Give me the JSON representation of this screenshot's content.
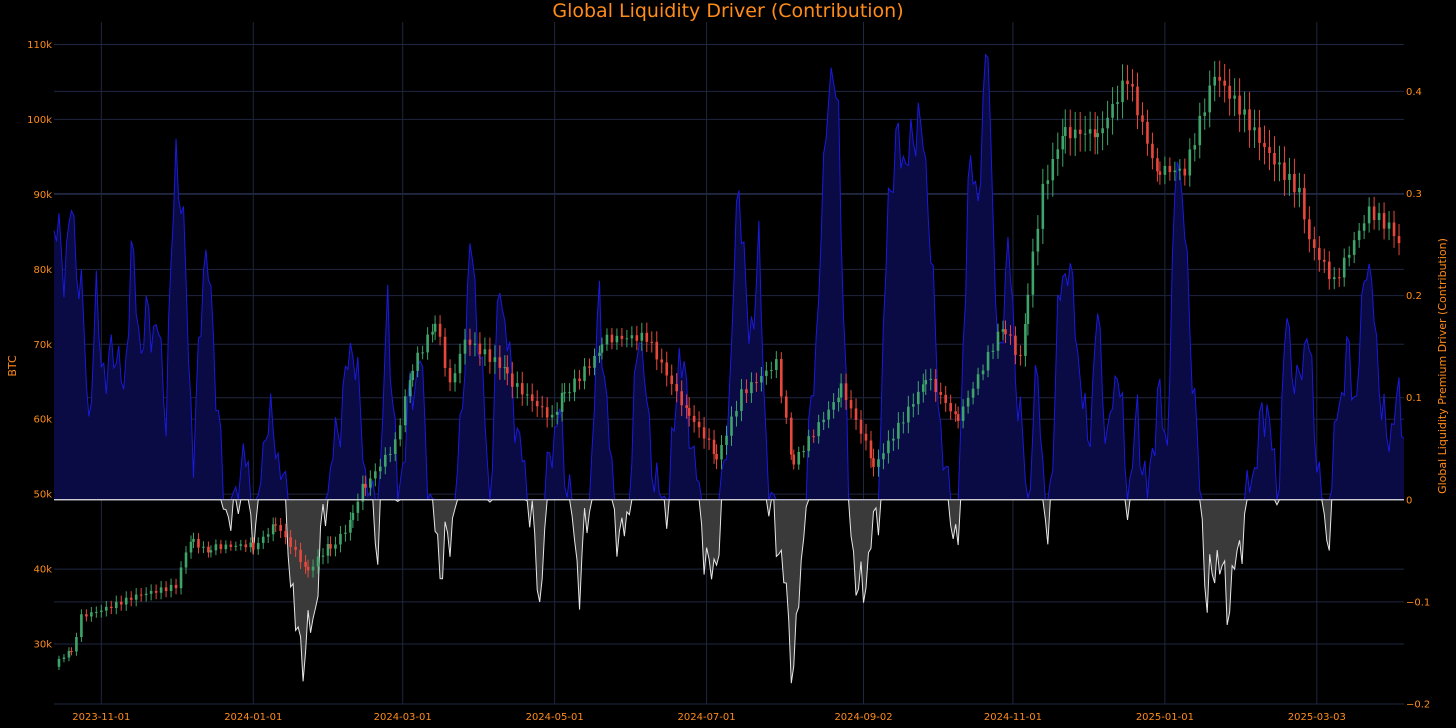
{
  "chart_data": {
    "type": "line",
    "title": "Global Liquidity Driver (Contribution)",
    "ylabel_left": "BTC",
    "ylabel_right": "Global Liquidity Premium Driver (Contribution)",
    "xlim": [
      "2023-10-13",
      "2025-04-07"
    ],
    "ylim_left": [
      22000,
      113000
    ],
    "ylim_right": [
      -0.2,
      0.468
    ],
    "x_ticks": [
      "2023-11-01",
      "2024-01-01",
      "2024-03-01",
      "2024-05-01",
      "2024-07-01",
      "2024-09-02",
      "2024-11-01",
      "2025-01-01",
      "2025-03-03"
    ],
    "y_ticks_left": [
      {
        "value": 30000,
        "label": "30k"
      },
      {
        "value": 40000,
        "label": "40k"
      },
      {
        "value": 50000,
        "label": "50k"
      },
      {
        "value": 60000,
        "label": "60k"
      },
      {
        "value": 70000,
        "label": "70k"
      },
      {
        "value": 80000,
        "label": "80k"
      },
      {
        "value": 90000,
        "label": "90k"
      },
      {
        "value": 100000,
        "label": "100k"
      },
      {
        "value": 110000,
        "label": "110k"
      }
    ],
    "y_ticks_right": [
      {
        "value": -0.2,
        "label": "−0.2"
      },
      {
        "value": -0.1,
        "label": "−0.1"
      },
      {
        "value": 0,
        "label": "0"
      },
      {
        "value": 0.1,
        "label": "0.1"
      },
      {
        "value": 0.2,
        "label": "0.2"
      },
      {
        "value": 0.3,
        "label": "0.3"
      },
      {
        "value": 0.4,
        "label": "0.4"
      }
    ],
    "btc_close_series": {
      "name": "BTC",
      "style": "candlestick",
      "points": [
        [
          "2023-10-13",
          27000
        ],
        [
          "2023-10-20",
          29000
        ],
        [
          "2023-10-24",
          34000
        ],
        [
          "2023-11-01",
          34800
        ],
        [
          "2023-11-15",
          36500
        ],
        [
          "2023-12-01",
          37500
        ],
        [
          "2023-12-05",
          42000
        ],
        [
          "2023-12-08",
          44000
        ],
        [
          "2023-12-15",
          42500
        ],
        [
          "2024-01-01",
          43000
        ],
        [
          "2024-01-10",
          46000
        ],
        [
          "2024-01-20",
          41500
        ],
        [
          "2024-01-23",
          39500
        ],
        [
          "2024-02-01",
          43000
        ],
        [
          "2024-02-10",
          47000
        ],
        [
          "2024-02-15",
          51500
        ],
        [
          "2024-02-27",
          57000
        ],
        [
          "2024-03-05",
          67000
        ],
        [
          "2024-03-14",
          73000
        ],
        [
          "2024-03-20",
          64000
        ],
        [
          "2024-03-26",
          70000
        ],
        [
          "2024-04-12",
          66000
        ],
        [
          "2024-04-30",
          60000
        ],
        [
          "2024-05-05",
          63500
        ],
        [
          "2024-05-20",
          70000
        ],
        [
          "2024-06-07",
          70500
        ],
        [
          "2024-06-24",
          60500
        ],
        [
          "2024-07-05",
          55000
        ],
        [
          "2024-07-15",
          64000
        ],
        [
          "2024-07-29",
          68000
        ],
        [
          "2024-08-05",
          54000
        ],
        [
          "2024-08-24",
          64000
        ],
        [
          "2024-09-06",
          54000
        ],
        [
          "2024-09-27",
          65500
        ],
        [
          "2024-10-10",
          60000
        ],
        [
          "2024-10-29",
          72500
        ],
        [
          "2024-11-04",
          68500
        ],
        [
          "2024-11-07",
          76500
        ],
        [
          "2024-11-13",
          90000
        ],
        [
          "2024-11-22",
          98500
        ],
        [
          "2024-12-05",
          98000
        ],
        [
          "2024-12-17",
          106500
        ],
        [
          "2024-12-30",
          92500
        ],
        [
          "2025-01-09",
          92500
        ],
        [
          "2025-01-21",
          106000
        ],
        [
          "2025-01-31",
          102000
        ],
        [
          "2025-02-10",
          97000
        ],
        [
          "2025-02-24",
          91000
        ],
        [
          "2025-02-28",
          84500
        ],
        [
          "2025-03-10",
          78500
        ],
        [
          "2025-03-24",
          87500
        ],
        [
          "2025-04-01",
          85000
        ],
        [
          "2025-04-05",
          83500
        ]
      ]
    },
    "liquidity_series": {
      "name": "Global Liquidity Premium Driver (Contribution)",
      "points": [
        [
          "2023-10-13",
          0.27
        ],
        [
          "2023-10-17",
          0.23
        ],
        [
          "2023-10-20",
          0.28
        ],
        [
          "2023-10-24",
          0.2
        ],
        [
          "2023-10-27",
          0.08
        ],
        [
          "2023-10-30",
          0.19
        ],
        [
          "2023-11-03",
          0.11
        ],
        [
          "2023-11-06",
          0.16
        ],
        [
          "2023-11-10",
          0.1
        ],
        [
          "2023-11-13",
          0.24
        ],
        [
          "2023-11-17",
          0.15
        ],
        [
          "2023-11-20",
          0.18
        ],
        [
          "2023-11-24",
          0.16
        ],
        [
          "2023-11-27",
          0.09
        ],
        [
          "2023-12-01",
          0.35
        ],
        [
          "2023-12-05",
          0.22
        ],
        [
          "2023-12-08",
          0.03
        ],
        [
          "2023-12-12",
          0.24
        ],
        [
          "2023-12-15",
          0.2
        ],
        [
          "2023-12-20",
          0.0
        ],
        [
          "2023-12-24",
          -0.02
        ],
        [
          "2023-12-28",
          0.05
        ],
        [
          "2024-01-02",
          -0.04
        ],
        [
          "2024-01-06",
          0.08
        ],
        [
          "2024-01-10",
          0.06
        ],
        [
          "2024-01-14",
          0.0
        ],
        [
          "2024-01-18",
          -0.13
        ],
        [
          "2024-01-22",
          -0.15
        ],
        [
          "2024-01-26",
          -0.1
        ],
        [
          "2024-01-30",
          0.0
        ],
        [
          "2024-02-04",
          0.07
        ],
        [
          "2024-02-10",
          0.16
        ],
        [
          "2024-02-15",
          0.03
        ],
        [
          "2024-02-20",
          -0.04
        ],
        [
          "2024-02-24",
          0.2
        ],
        [
          "2024-02-28",
          0.0
        ],
        [
          "2024-03-04",
          0.1
        ],
        [
          "2024-03-08",
          0.14
        ],
        [
          "2024-03-12",
          0.0
        ],
        [
          "2024-03-16",
          -0.06
        ],
        [
          "2024-03-20",
          -0.04
        ],
        [
          "2024-03-24",
          0.05
        ],
        [
          "2024-03-28",
          0.25
        ],
        [
          "2024-04-01",
          0.15
        ],
        [
          "2024-04-05",
          0.0
        ],
        [
          "2024-04-09",
          0.22
        ],
        [
          "2024-04-13",
          0.13
        ],
        [
          "2024-04-17",
          0.05
        ],
        [
          "2024-04-21",
          0.0
        ],
        [
          "2024-04-25",
          -0.1
        ],
        [
          "2024-04-29",
          0.05
        ],
        [
          "2024-05-03",
          0.08
        ],
        [
          "2024-05-07",
          0.0
        ],
        [
          "2024-05-11",
          -0.08
        ],
        [
          "2024-05-15",
          0.0
        ],
        [
          "2024-05-19",
          0.2
        ],
        [
          "2024-05-23",
          0.05
        ],
        [
          "2024-05-27",
          -0.05
        ],
        [
          "2024-05-31",
          0.0
        ],
        [
          "2024-06-04",
          0.18
        ],
        [
          "2024-06-08",
          0.06
        ],
        [
          "2024-06-12",
          0.0
        ],
        [
          "2024-06-16",
          0.0
        ],
        [
          "2024-06-20",
          0.15
        ],
        [
          "2024-06-24",
          0.08
        ],
        [
          "2024-06-28",
          0.0
        ],
        [
          "2024-07-02",
          -0.08
        ],
        [
          "2024-07-06",
          -0.04
        ],
        [
          "2024-07-10",
          0.1
        ],
        [
          "2024-07-14",
          0.32
        ],
        [
          "2024-07-18",
          0.15
        ],
        [
          "2024-07-22",
          0.24
        ],
        [
          "2024-07-26",
          0.0
        ],
        [
          "2024-07-30",
          -0.04
        ],
        [
          "2024-08-03",
          -0.12
        ],
        [
          "2024-08-05",
          -0.17
        ],
        [
          "2024-08-07",
          -0.1
        ],
        [
          "2024-08-11",
          0.05
        ],
        [
          "2024-08-15",
          0.2
        ],
        [
          "2024-08-19",
          0.42
        ],
        [
          "2024-08-23",
          0.38
        ],
        [
          "2024-08-27",
          0.0
        ],
        [
          "2024-08-31",
          -0.1
        ],
        [
          "2024-09-04",
          -0.06
        ],
        [
          "2024-09-08",
          0.0
        ],
        [
          "2024-09-12",
          0.3
        ],
        [
          "2024-09-16",
          0.35
        ],
        [
          "2024-09-20",
          0.33
        ],
        [
          "2024-09-24",
          0.38
        ],
        [
          "2024-09-28",
          0.3
        ],
        [
          "2024-10-02",
          0.1
        ],
        [
          "2024-10-06",
          0.0
        ],
        [
          "2024-10-10",
          -0.04
        ],
        [
          "2024-10-14",
          0.32
        ],
        [
          "2024-10-18",
          0.3
        ],
        [
          "2024-10-22",
          0.45
        ],
        [
          "2024-10-26",
          0.12
        ],
        [
          "2024-10-30",
          0.25
        ],
        [
          "2024-11-03",
          0.1
        ],
        [
          "2024-11-07",
          0.0
        ],
        [
          "2024-11-11",
          0.13
        ],
        [
          "2024-11-15",
          -0.06
        ],
        [
          "2024-11-19",
          0.18
        ],
        [
          "2024-11-23",
          0.24
        ],
        [
          "2024-11-27",
          0.15
        ],
        [
          "2024-12-01",
          0.05
        ],
        [
          "2024-12-05",
          0.18
        ],
        [
          "2024-12-09",
          0.05
        ],
        [
          "2024-12-13",
          0.14
        ],
        [
          "2024-12-17",
          0.0
        ],
        [
          "2024-12-21",
          0.08
        ],
        [
          "2024-12-25",
          0.0
        ],
        [
          "2024-12-29",
          0.1
        ],
        [
          "2025-01-02",
          0.06
        ],
        [
          "2025-01-06",
          0.36
        ],
        [
          "2025-01-10",
          0.22
        ],
        [
          "2025-01-14",
          0.05
        ],
        [
          "2025-01-18",
          -0.1
        ],
        [
          "2025-01-22",
          -0.05
        ],
        [
          "2025-01-26",
          -0.1
        ],
        [
          "2025-01-30",
          -0.06
        ],
        [
          "2025-02-03",
          0.0
        ],
        [
          "2025-02-07",
          0.05
        ],
        [
          "2025-02-11",
          0.1
        ],
        [
          "2025-02-15",
          0.0
        ],
        [
          "2025-02-19",
          0.18
        ],
        [
          "2025-02-23",
          0.1
        ],
        [
          "2025-02-27",
          0.17
        ],
        [
          "2025-03-03",
          0.05
        ],
        [
          "2025-03-07",
          -0.05
        ],
        [
          "2025-03-11",
          0.08
        ],
        [
          "2025-03-15",
          0.14
        ],
        [
          "2025-03-19",
          0.1
        ],
        [
          "2025-03-23",
          0.25
        ],
        [
          "2025-03-27",
          0.15
        ],
        [
          "2025-03-31",
          0.05
        ],
        [
          "2025-04-04",
          0.1
        ],
        [
          "2025-04-07",
          0.06
        ]
      ]
    },
    "grid": true,
    "colors": {
      "background": "#000000",
      "grid": "#1f2640",
      "axis_text": "#ff8c1a",
      "title": "#ff8c1a",
      "candle_up": "#3fa46a",
      "candle_down": "#e8483c",
      "positive_line": "#1a1adc",
      "positive_fill": "#0a0a45",
      "negative_line": "#e6e6e6",
      "negative_fill": "#3a3a3a",
      "zero_line": "#e6e6e6"
    }
  }
}
